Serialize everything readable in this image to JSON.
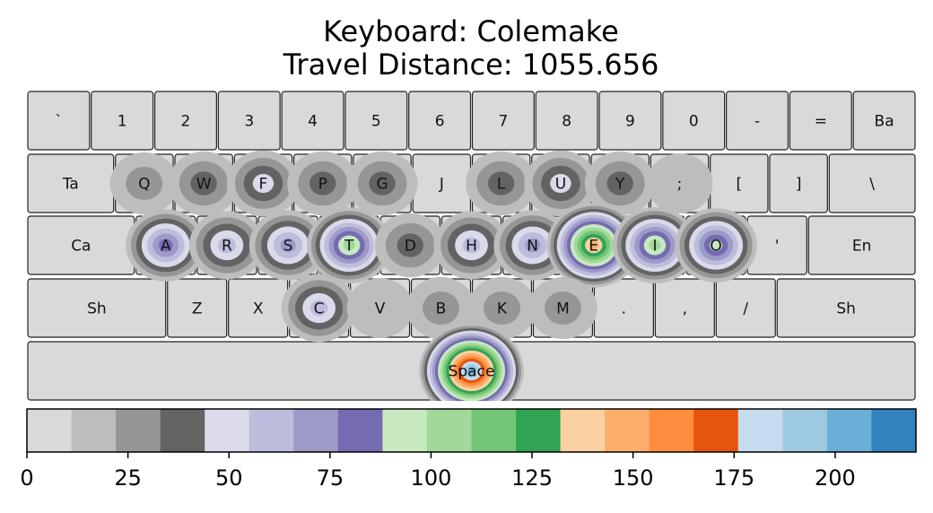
{
  "title": {
    "line1": "Keyboard: Colemake",
    "line2": "Travel Distance: 1055.656"
  },
  "keyboard": {
    "rows": [
      [
        {
          "label": "`",
          "w": 1
        },
        {
          "label": "1",
          "w": 1
        },
        {
          "label": "2",
          "w": 1
        },
        {
          "label": "3",
          "w": 1
        },
        {
          "label": "4",
          "w": 1
        },
        {
          "label": "5",
          "w": 1
        },
        {
          "label": "6",
          "w": 1
        },
        {
          "label": "7",
          "w": 1
        },
        {
          "label": "8",
          "w": 1
        },
        {
          "label": "9",
          "w": 1
        },
        {
          "label": "0",
          "w": 1
        },
        {
          "label": "-",
          "w": 1
        },
        {
          "label": "=",
          "w": 1
        },
        {
          "label": "Ba",
          "w": 1
        }
      ],
      [
        {
          "label": "Ta",
          "w": 1.4
        },
        {
          "label": "Q",
          "w": 0.95
        },
        {
          "label": "W",
          "w": 0.95
        },
        {
          "label": "F",
          "w": 0.95
        },
        {
          "label": "P",
          "w": 0.95
        },
        {
          "label": "G",
          "w": 0.95
        },
        {
          "label": "J",
          "w": 0.95
        },
        {
          "label": "L",
          "w": 0.95
        },
        {
          "label": "U",
          "w": 0.95
        },
        {
          "label": "Y",
          "w": 0.95
        },
        {
          "label": ";",
          "w": 0.95
        },
        {
          "label": "[",
          "w": 0.95
        },
        {
          "label": "]",
          "w": 0.95
        },
        {
          "label": "\\",
          "w": 1.4
        }
      ],
      [
        {
          "label": "Ca",
          "w": 1.7
        },
        {
          "label": "A",
          "w": 0.96
        },
        {
          "label": "R",
          "w": 0.96
        },
        {
          "label": "S",
          "w": 0.96
        },
        {
          "label": "T",
          "w": 0.96
        },
        {
          "label": "D",
          "w": 0.96
        },
        {
          "label": "H",
          "w": 0.96
        },
        {
          "label": "N",
          "w": 0.96
        },
        {
          "label": "E",
          "w": 0.96
        },
        {
          "label": "I",
          "w": 0.96
        },
        {
          "label": "O",
          "w": 0.96
        },
        {
          "label": "'",
          "w": 0.96
        },
        {
          "label": "En",
          "w": 1.7
        }
      ],
      [
        {
          "label": "Sh",
          "w": 2.2
        },
        {
          "label": "Z",
          "w": 0.96
        },
        {
          "label": "X",
          "w": 0.96
        },
        {
          "label": "C",
          "w": 0.96
        },
        {
          "label": "V",
          "w": 0.96
        },
        {
          "label": "B",
          "w": 0.96
        },
        {
          "label": "K",
          "w": 0.96
        },
        {
          "label": "M",
          "w": 0.96
        },
        {
          "label": ".",
          "w": 0.96
        },
        {
          "label": ",",
          "w": 0.96
        },
        {
          "label": "/",
          "w": 0.96
        },
        {
          "label": "Sh",
          "w": 2.2
        }
      ],
      [
        {
          "label": "Space",
          "w": 14
        }
      ]
    ]
  },
  "chart_data": {
    "type": "heatmap",
    "title": "Keyboard: Colemake\nTravel Distance: 1055.656",
    "key_values": {
      "Q": 28,
      "W": 40,
      "F": 45,
      "P": 42,
      "G": 35,
      "L": 35,
      "U": 45,
      "Y": 40,
      ";": 15,
      "A": 78,
      "R": 60,
      "S": 75,
      "T": 108,
      "D": 38,
      "H": 58,
      "N": 70,
      "E": 145,
      "I": 105,
      "O": 95,
      "'": 5,
      "C": 55,
      "V": 18,
      "B": 28,
      "K": 30,
      "M": 25,
      "Space": 205
    },
    "colorbar": {
      "range": [
        0,
        220
      ],
      "ticks": [
        0,
        25,
        50,
        75,
        100,
        125,
        150,
        175,
        200
      ],
      "colors": [
        "#d9d9d9",
        "#bdbdbd",
        "#969696",
        "#636363",
        "#dadaeb",
        "#bcbddc",
        "#9e9ac8",
        "#756bb1",
        "#c7e9c0",
        "#a1d99b",
        "#74c476",
        "#31a354",
        "#fdd0a2",
        "#fdae6b",
        "#fd8d3c",
        "#e6550d",
        "#c6dbef",
        "#9ecae1",
        "#6baed6",
        "#3182bd"
      ]
    }
  }
}
